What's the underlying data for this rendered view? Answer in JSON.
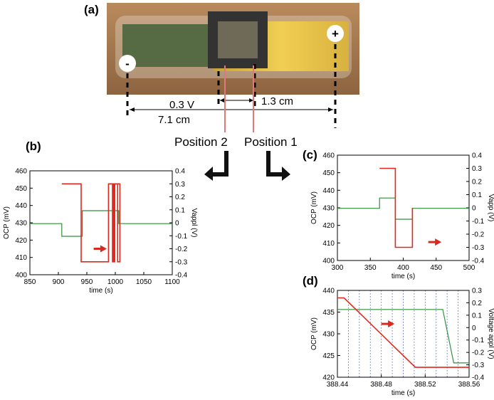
{
  "labels": {
    "a": "(a)",
    "b": "(b)",
    "c": "(c)",
    "d": "(d)"
  },
  "photo": {
    "minus": "-",
    "plus": "+",
    "voltage": "0.3 V",
    "dist_short": "1.3 cm",
    "dist_long": "7.1 cm",
    "position2": "Position 2",
    "position1": "Position 1"
  },
  "colors": {
    "ocp": "#2f8f3a",
    "vapp": "#e0281e",
    "arrow": "#d9281e",
    "grid": "#4a5aa8"
  },
  "chart_data": [
    {
      "id": "b",
      "type": "line",
      "xlabel": "time (s)",
      "ylabel": "OCP (mV)",
      "y2label": "Vappl (V)",
      "xlim": [
        850,
        1100
      ],
      "ylim": [
        400,
        460
      ],
      "y2lim": [
        -0.4,
        0.4
      ],
      "xticks": [
        "850",
        "900",
        "950",
        "1000",
        "1050",
        "1100"
      ],
      "yticks": [
        "400",
        "410",
        "420",
        "430",
        "440",
        "450",
        "460"
      ],
      "y2ticks": [
        "-0.4",
        "-0.3",
        "-0.2",
        "-0.1",
        "0",
        "0.1",
        "0.2",
        "0.3",
        "0.4"
      ],
      "series": [
        {
          "axis": "left",
          "color": "ocp",
          "x": [
            850,
            906,
            906,
            942,
            942,
            1006,
            1006,
            1100
          ],
          "y": [
            429.5,
            429.5,
            422.2,
            422.2,
            437,
            437,
            429.5,
            429.5
          ]
        },
        {
          "axis": "right",
          "color": "vapp",
          "x": [
            906,
            940,
            940,
            988,
            988,
            996,
            996,
            999,
            999,
            1008,
            1008,
            1004,
            1004,
            998,
            998,
            995,
            995,
            988
          ],
          "y": [
            0.3,
            0.3,
            -0.3,
            -0.3,
            0.3,
            0.3,
            -0.3,
            -0.3,
            0.3,
            0.3,
            -0.3,
            -0.3,
            0.3,
            0.3,
            -0.3,
            -0.3,
            0.3,
            0.3
          ]
        }
      ],
      "arrow": {
        "x0": 962,
        "x1": 985,
        "y": -0.2
      }
    },
    {
      "id": "c",
      "type": "line",
      "xlabel": "time (s)",
      "ylabel": "OCP (mV)",
      "y2label": "Vapp (V)",
      "xlim": [
        300,
        500
      ],
      "ylim": [
        400,
        460
      ],
      "y2lim": [
        -0.4,
        0.4
      ],
      "xticks": [
        "300",
        "350",
        "400",
        "450",
        "500"
      ],
      "yticks": [
        "400",
        "410",
        "420",
        "430",
        "440",
        "450",
        "460"
      ],
      "y2ticks": [
        "-0.4",
        "-0.3",
        "-0.2",
        "-0.1",
        "0",
        "0.1",
        "0.2",
        "0.3",
        "0.4"
      ],
      "series": [
        {
          "axis": "left",
          "color": "ocp",
          "x": [
            300,
            364,
            364,
            388,
            388,
            414,
            414,
            500
          ],
          "y": [
            429.7,
            429.7,
            435.6,
            435.6,
            423.5,
            423.5,
            429.7,
            429.7
          ]
        },
        {
          "axis": "right",
          "color": "vapp",
          "x": [
            364,
            388,
            388,
            414,
            414
          ],
          "y": [
            0.3,
            0.3,
            -0.3,
            -0.3,
            0
          ]
        }
      ],
      "arrow": {
        "x0": 438,
        "x1": 458,
        "y": -0.26
      }
    },
    {
      "id": "d",
      "type": "line",
      "xlabel": "time (s)",
      "ylabel": "OCP (mV)",
      "y2label": "Voltage appl (V)",
      "xlim": [
        388.44,
        388.56
      ],
      "ylim": [
        420,
        440
      ],
      "y2lim": [
        -0.4,
        0.3
      ],
      "xticks": [
        "388.44",
        "388.48",
        "388.52",
        "388.56"
      ],
      "xtick_values": [
        388.44,
        388.48,
        388.52,
        388.56
      ],
      "yticks": [
        "420",
        "425",
        "430",
        "435",
        "440"
      ],
      "y2ticks": [
        "-0.4",
        "-0.3",
        "-0.2",
        "-0.1",
        "0",
        "0.1",
        "0.2",
        "0.3"
      ],
      "vgrid": [
        388.45,
        388.46,
        388.47,
        388.48,
        388.49,
        388.5,
        388.51,
        388.52,
        388.53,
        388.54,
        388.55
      ],
      "series": [
        {
          "axis": "left",
          "color": "ocp",
          "x": [
            388.44,
            388.536,
            388.546,
            388.56
          ],
          "y": [
            435.6,
            435.6,
            423.3,
            423.3
          ]
        },
        {
          "axis": "right",
          "color": "vapp",
          "x": [
            388.44,
            388.446,
            388.511,
            388.56
          ],
          "y": [
            0.24,
            0.24,
            -0.32,
            -0.32
          ]
        }
      ],
      "arrow": {
        "x0": 388.48,
        "x1": 388.492,
        "y": 0.03
      }
    }
  ]
}
